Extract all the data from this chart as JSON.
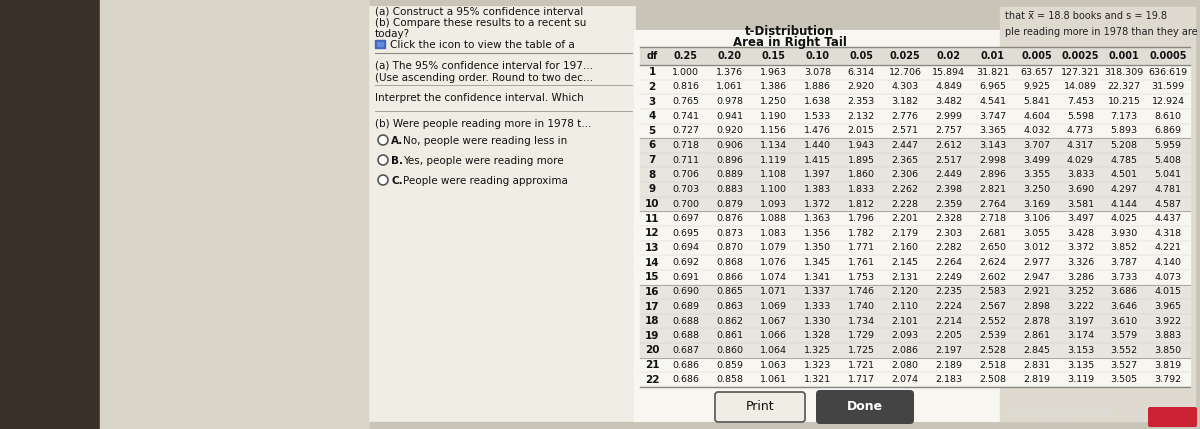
{
  "col_headers": [
    "df",
    "0.25",
    "0.20",
    "0.15",
    "0.10",
    "0.05",
    "0.025",
    "0.02",
    "0.01",
    "0.005",
    "0.0025",
    "0.001",
    "0.0005"
  ],
  "table_data": [
    [
      1,
      1.0,
      1.376,
      1.963,
      3.078,
      6.314,
      12.706,
      15.894,
      31.821,
      63.657,
      127.321,
      318.309,
      636.619
    ],
    [
      2,
      0.816,
      1.061,
      1.386,
      1.886,
      2.92,
      4.303,
      4.849,
      6.965,
      9.925,
      14.089,
      22.327,
      31.599
    ],
    [
      3,
      0.765,
      0.978,
      1.25,
      1.638,
      2.353,
      3.182,
      3.482,
      4.541,
      5.841,
      7.453,
      10.215,
      12.924
    ],
    [
      4,
      0.741,
      0.941,
      1.19,
      1.533,
      2.132,
      2.776,
      2.999,
      3.747,
      4.604,
      5.598,
      7.173,
      8.61
    ],
    [
      5,
      0.727,
      0.92,
      1.156,
      1.476,
      2.015,
      2.571,
      2.757,
      3.365,
      4.032,
      4.773,
      5.893,
      6.869
    ],
    [
      6,
      0.718,
      0.906,
      1.134,
      1.44,
      1.943,
      2.447,
      2.612,
      3.143,
      3.707,
      4.317,
      5.208,
      5.959
    ],
    [
      7,
      0.711,
      0.896,
      1.119,
      1.415,
      1.895,
      2.365,
      2.517,
      2.998,
      3.499,
      4.029,
      4.785,
      5.408
    ],
    [
      8,
      0.706,
      0.889,
      1.108,
      1.397,
      1.86,
      2.306,
      2.449,
      2.896,
      3.355,
      3.833,
      4.501,
      5.041
    ],
    [
      9,
      0.703,
      0.883,
      1.1,
      1.383,
      1.833,
      2.262,
      2.398,
      2.821,
      3.25,
      3.69,
      4.297,
      4.781
    ],
    [
      10,
      0.7,
      0.879,
      1.093,
      1.372,
      1.812,
      2.228,
      2.359,
      2.764,
      3.169,
      3.581,
      4.144,
      4.587
    ],
    [
      11,
      0.697,
      0.876,
      1.088,
      1.363,
      1.796,
      2.201,
      2.328,
      2.718,
      3.106,
      3.497,
      4.025,
      4.437
    ],
    [
      12,
      0.695,
      0.873,
      1.083,
      1.356,
      1.782,
      2.179,
      2.303,
      2.681,
      3.055,
      3.428,
      3.93,
      4.318
    ],
    [
      13,
      0.694,
      0.87,
      1.079,
      1.35,
      1.771,
      2.16,
      2.282,
      2.65,
      3.012,
      3.372,
      3.852,
      4.221
    ],
    [
      14,
      0.692,
      0.868,
      1.076,
      1.345,
      1.761,
      2.145,
      2.264,
      2.624,
      2.977,
      3.326,
      3.787,
      4.14
    ],
    [
      15,
      0.691,
      0.866,
      1.074,
      1.341,
      1.753,
      2.131,
      2.249,
      2.602,
      2.947,
      3.286,
      3.733,
      4.073
    ],
    [
      16,
      0.69,
      0.865,
      1.071,
      1.337,
      1.746,
      2.12,
      2.235,
      2.583,
      2.921,
      3.252,
      3.686,
      4.015
    ],
    [
      17,
      0.689,
      0.863,
      1.069,
      1.333,
      1.74,
      2.11,
      2.224,
      2.567,
      2.898,
      3.222,
      3.646,
      3.965
    ],
    [
      18,
      0.688,
      0.862,
      1.067,
      1.33,
      1.734,
      2.101,
      2.214,
      2.552,
      2.878,
      3.197,
      3.61,
      3.922
    ],
    [
      19,
      0.688,
      0.861,
      1.066,
      1.328,
      1.729,
      2.093,
      2.205,
      2.539,
      2.861,
      3.174,
      3.579,
      3.883
    ],
    [
      20,
      0.687,
      0.86,
      1.064,
      1.325,
      1.725,
      2.086,
      2.197,
      2.528,
      2.845,
      3.153,
      3.552,
      3.85
    ],
    [
      21,
      0.686,
      0.859,
      1.063,
      1.323,
      1.721,
      2.08,
      2.189,
      2.518,
      2.831,
      3.135,
      3.527,
      3.819
    ],
    [
      22,
      0.686,
      0.858,
      1.061,
      1.321,
      1.717,
      2.074,
      2.183,
      2.508,
      2.819,
      3.119,
      3.505,
      3.792
    ]
  ],
  "left_bg": "#2a2420",
  "screen_bg": "#e8e5de",
  "left_panel_bg": "#f0ede4",
  "table_panel_bg": "#f2efe6",
  "table_white_bg": "#f8f6f0",
  "header_stripe": "#e0ddd4",
  "group_stripe_a": "#f0ede4",
  "group_stripe_b": "#e4e1d8",
  "top_right_bg": "#dedad0",
  "border_blue": "#5577aa",
  "text_dark": "#111111",
  "text_blue": "#2244aa"
}
